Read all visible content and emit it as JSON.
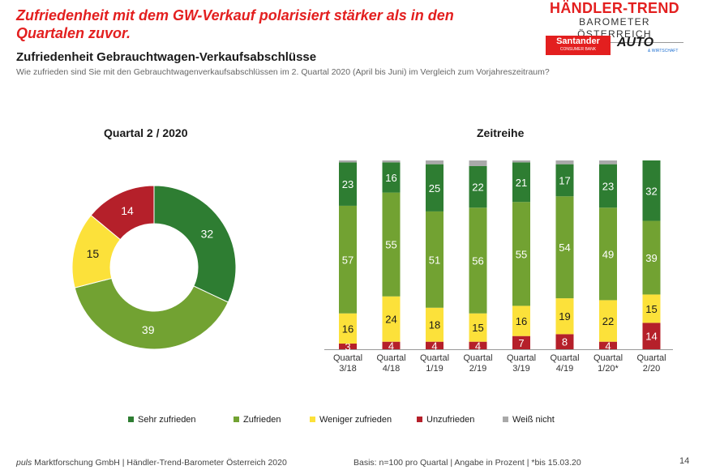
{
  "header": {
    "headline": "Zufriedenheit mit dem GW-Verkauf polarisiert stärker als in den Quartalen zuvor.",
    "brand_line1": "HÄNDLER-TREND",
    "brand_line2": "BAROMETER ÖSTERREICH",
    "logo_santander": "Santander",
    "logo_santander_sub": "CONSUMER BANK",
    "logo_auto": "AUTO",
    "logo_auto_sub": "& WIRTSCHAFT"
  },
  "subtitle": "Zufriedenheit Gebrauchtwagen-Verkaufsabschlüsse",
  "question": "Wie zufrieden sind Sie mit den Gebrauchtwagenverkaufsabschlüssen im 2. Quartal 2020 (April bis Juni) im Vergleich zum Vorjahreszeitraum?",
  "colors": {
    "sehr_zufrieden": "#2e7d32",
    "zufrieden": "#72a232",
    "weniger_zufrieden": "#fce13a",
    "unzufrieden": "#b5202a",
    "weiss_nicht": "#a9a9a9"
  },
  "chart_data": [
    {
      "type": "pie",
      "title": "Quartal 2 / 2020",
      "donut": true,
      "slices": [
        {
          "label": "Sehr zufrieden",
          "value": 32
        },
        {
          "label": "Zufrieden",
          "value": 39
        },
        {
          "label": "Weniger zufrieden",
          "value": 15
        },
        {
          "label": "Unzufrieden",
          "value": 14
        }
      ]
    },
    {
      "type": "bar",
      "stacked": true,
      "title": "Zeitreihe",
      "categories": [
        [
          "Quartal",
          "3/18"
        ],
        [
          "Quartal",
          "4/18"
        ],
        [
          "Quartal",
          "1/19"
        ],
        [
          "Quartal",
          "2/19"
        ],
        [
          "Quartal",
          "3/19"
        ],
        [
          "Quartal",
          "4/19"
        ],
        [
          "Quartal",
          "1/20*"
        ],
        [
          "Quartal",
          "2/20"
        ]
      ],
      "series": [
        {
          "name": "Unzufrieden",
          "values": [
            3,
            4,
            4,
            4,
            7,
            8,
            4,
            14
          ]
        },
        {
          "name": "Weniger zufrieden",
          "values": [
            16,
            24,
            18,
            15,
            16,
            19,
            22,
            15
          ]
        },
        {
          "name": "Zufrieden",
          "values": [
            57,
            55,
            51,
            56,
            55,
            54,
            49,
            39
          ]
        },
        {
          "name": "Sehr zufrieden",
          "values": [
            23,
            16,
            25,
            22,
            21,
            17,
            23,
            32
          ]
        },
        {
          "name": "Weiß nicht",
          "values": [
            1,
            1,
            2,
            3,
            1,
            2,
            2,
            0
          ]
        }
      ],
      "ylim": [
        0,
        100
      ],
      "legend_position": "bottom"
    }
  ],
  "legend": [
    {
      "label": "Sehr zufrieden",
      "color_key": "sehr_zufrieden"
    },
    {
      "label": "Zufrieden",
      "color_key": "zufrieden"
    },
    {
      "label": "Weniger zufrieden",
      "color_key": "weniger_zufrieden"
    },
    {
      "label": "Unzufrieden",
      "color_key": "unzufrieden"
    },
    {
      "label": "Weiß nicht",
      "color_key": "weiss_nicht"
    }
  ],
  "footer": {
    "left_italic": "puls",
    "left": " Marktforschung GmbH | Händler-Trend-Barometer Österreich 2020",
    "right": "Basis: n=100 pro Quartal | Angabe in Prozent | *bis 15.03.20",
    "page": "14"
  }
}
